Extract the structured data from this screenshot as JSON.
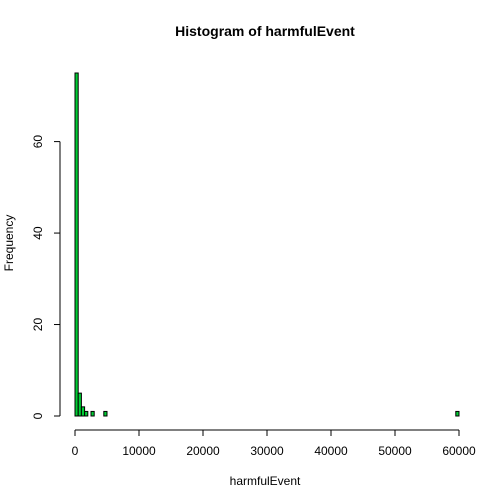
{
  "chart_data": {
    "type": "bar",
    "title": "Histogram of harmfulEvent",
    "xlabel": "harmfulEvent",
    "ylabel": "Frequency",
    "xlim": [
      0,
      60000
    ],
    "ylim": [
      0,
      75
    ],
    "x_ticks": [
      "0",
      "10000",
      "20000",
      "30000",
      "40000",
      "50000",
      "60000"
    ],
    "y_ticks": [
      "0",
      "20",
      "40",
      "60"
    ],
    "bin_width": 500,
    "bins": [
      {
        "x0": 0,
        "x1": 500,
        "count": 75
      },
      {
        "x0": 500,
        "x1": 1000,
        "count": 5
      },
      {
        "x0": 1000,
        "x1": 1500,
        "count": 2
      },
      {
        "x0": 1500,
        "x1": 2000,
        "count": 1
      },
      {
        "x0": 2500,
        "x1": 3000,
        "count": 1
      },
      {
        "x0": 4500,
        "x1": 5000,
        "count": 1
      },
      {
        "x0": 59500,
        "x1": 60000,
        "count": 1
      }
    ],
    "bar_fill": "#00cc33",
    "bar_stroke": "#000000",
    "grid": false
  }
}
